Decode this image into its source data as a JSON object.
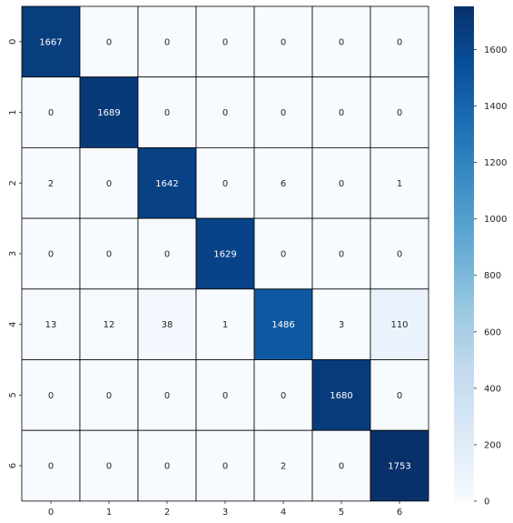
{
  "chart_data": {
    "type": "heatmap",
    "title": "",
    "xlabel": "",
    "ylabel": "",
    "x_labels": [
      "0",
      "1",
      "2",
      "3",
      "4",
      "5",
      "6"
    ],
    "y_labels": [
      "0",
      "1",
      "2",
      "3",
      "4",
      "5",
      "6"
    ],
    "values": [
      [
        1667,
        0,
        0,
        0,
        0,
        0,
        0
      ],
      [
        0,
        1689,
        0,
        0,
        0,
        0,
        0
      ],
      [
        2,
        0,
        1642,
        0,
        6,
        0,
        1
      ],
      [
        0,
        0,
        0,
        1629,
        0,
        0,
        0
      ],
      [
        13,
        12,
        38,
        1,
        1486,
        3,
        110
      ],
      [
        0,
        0,
        0,
        0,
        0,
        1680,
        0
      ],
      [
        0,
        0,
        0,
        0,
        2,
        0,
        1753
      ]
    ],
    "colormap": "Blues",
    "colorbar": {
      "range": [
        0,
        1753
      ],
      "ticks": [
        0,
        200,
        400,
        600,
        800,
        1000,
        1200,
        1400,
        1600
      ]
    },
    "annotations": true,
    "grid_line_color": "#000000"
  }
}
